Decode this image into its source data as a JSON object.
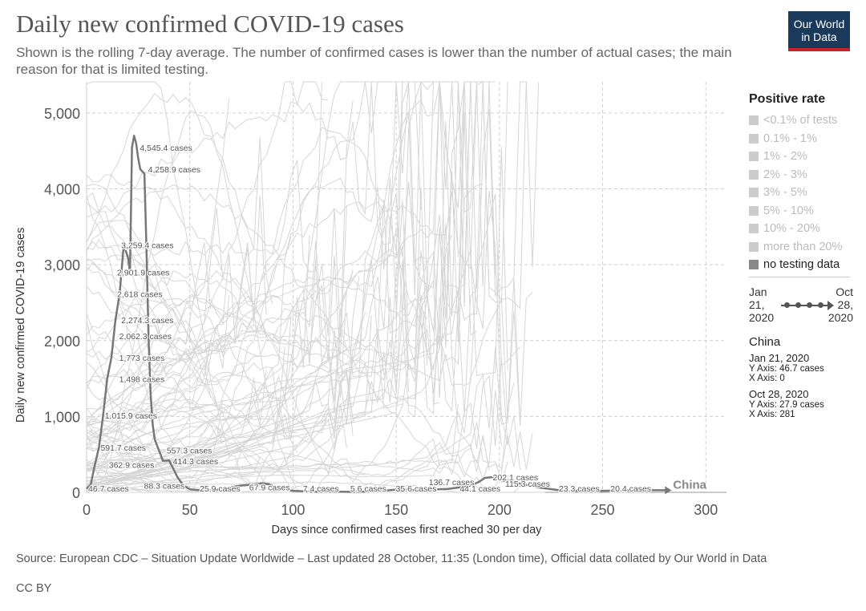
{
  "header": {
    "title": "Daily new confirmed COVID-19 cases",
    "subtitle": "Shown is the rolling 7-day average. The number of confirmed cases is lower than the number of actual cases; the main reason for that is limited testing.",
    "logo_line1": "Our World",
    "logo_line2": "in Data"
  },
  "legend": {
    "title": "Positive rate",
    "items": [
      {
        "label": "<0.1% of tests",
        "active": false
      },
      {
        "label": "0.1% - 1%",
        "active": false
      },
      {
        "label": "1% - 2%",
        "active": false
      },
      {
        "label": "2% - 3%",
        "active": false
      },
      {
        "label": "3% - 5%",
        "active": false
      },
      {
        "label": "5% - 10%",
        "active": false
      },
      {
        "label": "10% - 20%",
        "active": false
      },
      {
        "label": "more than 20%",
        "active": false
      },
      {
        "label": "no testing data",
        "active": true
      }
    ]
  },
  "timeline": {
    "start_line1": "Jan",
    "start_line2": "21,",
    "start_line3": "2020",
    "end_line1": "Oct",
    "end_line2": "28,",
    "end_line3": "2020"
  },
  "info": {
    "country": "China",
    "start": {
      "date": "Jan 21, 2020",
      "y": "Y Axis: 46.7 cases",
      "x": "X Axis: 0"
    },
    "end": {
      "date": "Oct 28, 2020",
      "y": "Y Axis: 27.9 cases",
      "x": "X Axis: 281"
    }
  },
  "footer": {
    "source": "Source: European CDC – Situation Update Worldwide – Last updated 28 October, 11:35 (London time), Official data collated by Our World in Data",
    "license": "CC BY"
  },
  "colors": {
    "highlight": "#777777",
    "background_lines": "#d6d6d6",
    "grid": "#cfcfcf",
    "logo_bg": "#1a3a5c",
    "logo_accent": "#c8242b"
  },
  "chart_data": {
    "type": "line",
    "xlabel": "Days since confirmed cases first reached 30 per day",
    "ylabel": "Daily new confirmed COVID-19 cases",
    "xlim": [
      0,
      310
    ],
    "ylim": [
      0,
      5200
    ],
    "x_ticks": [
      0,
      50,
      100,
      150,
      200,
      250,
      300
    ],
    "x_tick_labels": [
      "0",
      "50",
      "100",
      "150",
      "200",
      "250",
      "300"
    ],
    "y_ticks": [
      0,
      1000,
      2000,
      3000,
      4000,
      5000
    ],
    "y_tick_labels": [
      "0",
      "1,000",
      "2,000",
      "3,000",
      "4,000",
      "5,000"
    ],
    "grid": true,
    "series": [
      {
        "name": "China",
        "x": [
          0,
          2,
          4,
          6,
          8,
          10,
          12,
          14,
          16,
          18,
          20,
          21,
          22,
          23,
          24,
          25,
          26,
          28,
          29,
          30,
          31,
          32,
          33,
          35,
          37,
          40,
          44,
          47,
          50,
          55,
          60,
          65,
          70,
          75,
          80,
          85,
          88,
          92,
          100,
          110,
          120,
          130,
          140,
          150,
          160,
          175,
          185,
          190,
          193,
          197,
          202,
          210,
          220,
          230,
          240,
          250,
          260,
          270,
          281
        ],
        "y": [
          46.7,
          100,
          362.9,
          591.7,
          1015.9,
          1498,
          1773,
          2274.3,
          2618,
          3259.4,
          3100,
          2901.9,
          4545.4,
          4700,
          4600,
          4400,
          4258.9,
          4200,
          3200,
          2062.3,
          1300,
          900,
          700,
          557.3,
          414.3,
          420,
          200,
          88.3,
          40,
          25.9,
          30,
          40,
          67.9,
          90,
          100,
          120,
          110,
          60,
          20,
          7.4,
          10,
          5.6,
          12,
          35.6,
          30,
          44.1,
          80,
          136.7,
          190,
          202.1,
          150,
          115.3,
          60,
          23.3,
          20,
          20.4,
          25,
          27,
          27.9
        ]
      }
    ],
    "annotations": [
      {
        "x": 0,
        "y": 46.7,
        "text": "46.7 cases"
      },
      {
        "x": 10,
        "y": 362.9,
        "text": "362.9 cases"
      },
      {
        "x": 6,
        "y": 591.7,
        "text": "591.7 cases"
      },
      {
        "x": 8,
        "y": 1015.9,
        "text": "1,015.9 cases"
      },
      {
        "x": 15,
        "y": 1498,
        "text": "1,498 cases"
      },
      {
        "x": 15,
        "y": 1773,
        "text": "1,773 cases"
      },
      {
        "x": 15,
        "y": 2062.3,
        "text": "2,062.3 cases"
      },
      {
        "x": 16,
        "y": 2274.3,
        "text": "2,274.3 cases"
      },
      {
        "x": 14,
        "y": 2618,
        "text": "2,618 cases"
      },
      {
        "x": 14,
        "y": 2901.9,
        "text": "2,901.9 cases"
      },
      {
        "x": 16,
        "y": 3259.4,
        "text": "3,259.4 cases"
      },
      {
        "x": 25,
        "y": 4545.4,
        "text": "4,545.4 cases"
      },
      {
        "x": 29,
        "y": 4258.9,
        "text": "4,258.9 cases"
      },
      {
        "x": 27,
        "y": 88.3,
        "text": "88.3 cases"
      },
      {
        "x": 38,
        "y": 557.3,
        "text": "557.3 cases"
      },
      {
        "x": 41,
        "y": 414.3,
        "text": "414.3 cases"
      },
      {
        "x": 54,
        "y": 25.9,
        "text": "25.9 cases"
      },
      {
        "x": 78,
        "y": 67.9,
        "text": "67.9 cases"
      },
      {
        "x": 104,
        "y": 7.4,
        "text": "7.4 cases"
      },
      {
        "x": 127,
        "y": 5.6,
        "text": "5.6 cases"
      },
      {
        "x": 149,
        "y": 35.6,
        "text": "35.6 cases"
      },
      {
        "x": 180,
        "y": 44.1,
        "text": "44.1 cases"
      },
      {
        "x": 165,
        "y": 136.7,
        "text": "136.7 cases"
      },
      {
        "x": 196,
        "y": 202.1,
        "text": "202.1 cases"
      },
      {
        "x": 202,
        "y": 115.3,
        "text": "115.3 cases"
      },
      {
        "x": 228,
        "y": 23.3,
        "text": "23.3 cases"
      },
      {
        "x": 253,
        "y": 20.4,
        "text": "20.4 cases"
      }
    ],
    "end_label": "China"
  }
}
